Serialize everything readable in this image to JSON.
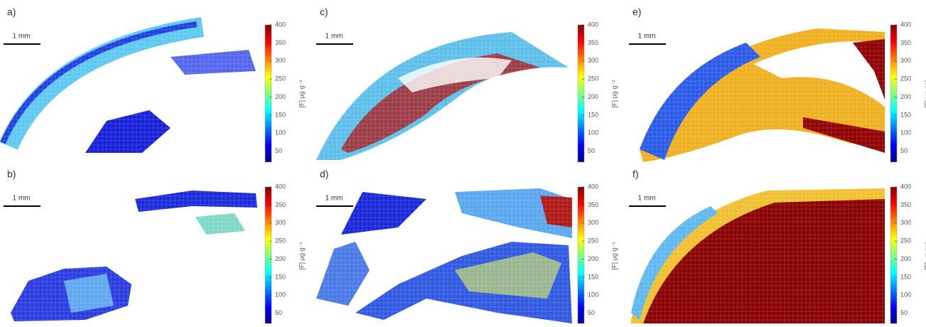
{
  "panels": [
    {
      "label": "a)",
      "scale_bar": "1 mm"
    },
    {
      "label": "b)",
      "scale_bar": "1 mm"
    },
    {
      "label": "c)",
      "scale_bar": "1 mm"
    },
    {
      "label": "d)",
      "scale_bar": "1 mm"
    },
    {
      "label": "e)",
      "scale_bar": "1 mm"
    },
    {
      "label": "f)",
      "scale_bar": "1 mm"
    }
  ],
  "colorbar": {
    "label": "[F] μg·g⁻¹",
    "lim": [
      20,
      400
    ],
    "ticks": [
      50,
      100,
      150,
      200,
      250,
      300,
      350,
      400
    ]
  }
}
